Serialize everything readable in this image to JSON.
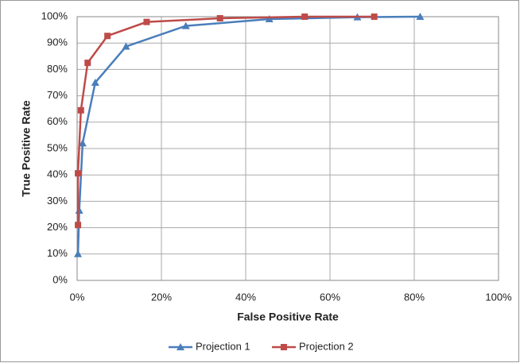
{
  "chart_data": {
    "type": "line",
    "x_label": "False Positive Rate",
    "y_label": "True Positive Rate",
    "xlim": [
      0,
      100
    ],
    "ylim": [
      0,
      100
    ],
    "xticks": [
      {
        "value": 0,
        "label": "0%"
      },
      {
        "value": 20,
        "label": "20%"
      },
      {
        "value": 40,
        "label": "40%"
      },
      {
        "value": 60,
        "label": "60%"
      },
      {
        "value": 80,
        "label": "80%"
      },
      {
        "value": 100,
        "label": "100%"
      }
    ],
    "yticks": [
      {
        "value": 0,
        "label": "0%"
      },
      {
        "value": 10,
        "label": "10%"
      },
      {
        "value": 20,
        "label": "20%"
      },
      {
        "value": 30,
        "label": "30%"
      },
      {
        "value": 40,
        "label": "40%"
      },
      {
        "value": 50,
        "label": "50%"
      },
      {
        "value": 60,
        "label": "60%"
      },
      {
        "value": 70,
        "label": "70%"
      },
      {
        "value": 80,
        "label": "80%"
      },
      {
        "value": 90,
        "label": "90%"
      },
      {
        "value": 100,
        "label": "100%"
      }
    ],
    "grid": true,
    "legend": "bottom",
    "series": [
      {
        "name": "Projection 1",
        "color": "#4a7ebb",
        "marker": "triangle",
        "x": [
          0.2,
          0.5,
          1.3,
          4.3,
          11.6,
          25.8,
          45.6,
          66.5,
          81.4
        ],
        "values": [
          10,
          26.5,
          52,
          75,
          88.7,
          96.5,
          99.1,
          99.8,
          100
        ]
      },
      {
        "name": "Projection 2",
        "color": "#be4b48",
        "marker": "square",
        "x": [
          0.2,
          0.2,
          0.9,
          2.5,
          7.2,
          16.5,
          33.9,
          54,
          70.5
        ],
        "values": [
          21,
          40.6,
          64.5,
          82.5,
          92.7,
          98,
          99.4,
          100,
          100
        ]
      }
    ]
  }
}
